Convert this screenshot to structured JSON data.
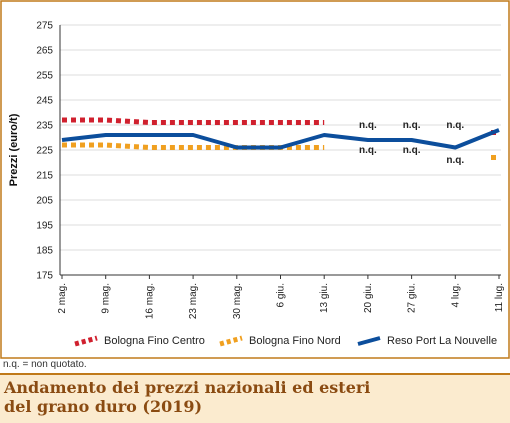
{
  "colors": {
    "bologna_centro": "#d0202e",
    "bologna_nord": "#f0a020",
    "reso_port": "#0c4e9c",
    "frame": "#c07a1a",
    "title_bg": "#fbebcf",
    "title_text": "#8a4b12"
  },
  "footnote": "n.q. = non quotato.",
  "title": "Andamento dei prezzi nazionali ed esteri del grano duro (2019)",
  "chart_data": {
    "type": "line",
    "title": "",
    "ylabel": "Prezzi (euro/t)",
    "xlabel": "",
    "ylim": [
      175,
      275
    ],
    "yticks": [
      175,
      185,
      195,
      205,
      215,
      225,
      235,
      245,
      255,
      265,
      275
    ],
    "categories": [
      "2 mag.",
      "9 mag.",
      "16 mag.",
      "23 mag.",
      "30 mag.",
      "6 giu.",
      "13 giu.",
      "20 giu.",
      "27 giu.",
      "4 lug.",
      "11 lug."
    ],
    "grid": true,
    "legend_position": "bottom",
    "series": [
      {
        "name": "Bologna Fino Centro",
        "style": "dotted",
        "color": "#d0202e",
        "values": [
          237,
          237,
          236,
          236,
          236,
          236,
          236,
          null,
          null,
          null,
          232
        ]
      },
      {
        "name": "Bologna Fino Nord",
        "style": "dotted",
        "color": "#f0a020",
        "values": [
          227,
          227,
          226,
          226,
          226,
          226,
          226,
          null,
          null,
          null,
          222
        ]
      },
      {
        "name": "Reso Port La Nouvelle",
        "style": "solid",
        "color": "#0c4e9c",
        "values": [
          229,
          231,
          231,
          231,
          226,
          226,
          231,
          229,
          229,
          226,
          233
        ]
      }
    ],
    "annotations": [
      {
        "text": "n.q.",
        "x": "20 giu.",
        "y": 235
      },
      {
        "text": "n.q.",
        "x": "20 giu.",
        "y": 225
      },
      {
        "text": "n.q.",
        "x": "27 giu.",
        "y": 235
      },
      {
        "text": "n.q.",
        "x": "27 giu.",
        "y": 225
      },
      {
        "text": "n.q.",
        "x": "4 lug.",
        "y": 235
      },
      {
        "text": "n.q.",
        "x": "4 lug.",
        "y": 221
      }
    ]
  }
}
